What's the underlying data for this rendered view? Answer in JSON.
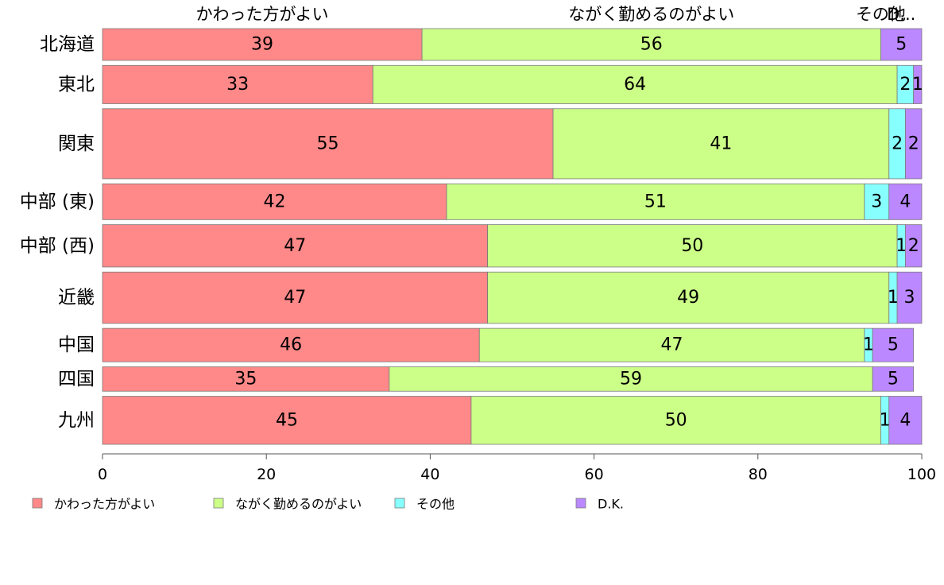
{
  "chart_data": {
    "type": "bar",
    "orientation": "horizontal",
    "stacked": true,
    "categories": [
      "北海道",
      "東北",
      "関東",
      "中部 (東)",
      "中部 (西)",
      "近畿",
      "中国",
      "四国",
      "九州"
    ],
    "series": [
      {
        "name": "かわった方がよい",
        "color": "#FF8888",
        "values": [
          39,
          33,
          55,
          42,
          47,
          47,
          46,
          35,
          45
        ]
      },
      {
        "name": "ながく勤めるのがよい",
        "color": "#CCFF88",
        "values": [
          56,
          64,
          41,
          51,
          50,
          49,
          47,
          59,
          50
        ]
      },
      {
        "name": "その他",
        "color": "#88FFFF",
        "values": [
          0,
          2,
          2,
          3,
          1,
          1,
          1,
          0,
          1
        ]
      },
      {
        "name": "D.K.",
        "color": "#BB88FF",
        "values": [
          5,
          1,
          2,
          4,
          2,
          3,
          5,
          5,
          4
        ]
      }
    ],
    "row_weights": [
      3.9,
      4.7,
      8.6,
      4.4,
      5.2,
      6.3,
      4.1,
      3.0,
      5.9
    ],
    "top_labels": [
      "かわった方がよい",
      "ながく勤めるのがよい",
      "その他",
      "D..."
    ],
    "xlim": [
      0,
      100
    ],
    "x_ticks": [
      0,
      20,
      40,
      60,
      80,
      100
    ],
    "legend_position": "bottom",
    "grid": false
  }
}
